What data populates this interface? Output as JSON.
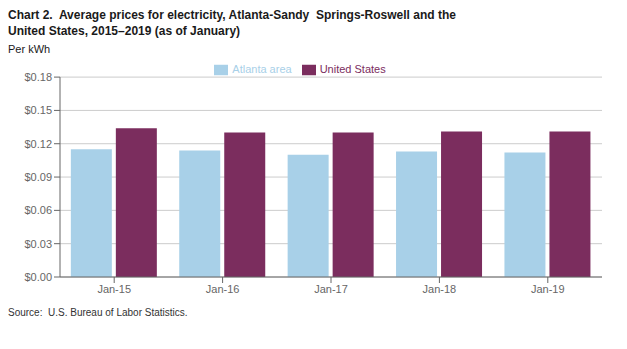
{
  "chart_data": {
    "type": "bar",
    "title": "Chart 2.  Average prices for electricity, Atlanta-Sandy  Springs-Roswell and the\nUnited States, 2015–2019 (as of January)",
    "y_label": "Per kWh",
    "source": "Source:  U.S. Bureau of Labor Statistics.",
    "categories": [
      "Jan-15",
      "Jan-16",
      "Jan-17",
      "Jan-18",
      "Jan-19"
    ],
    "series": [
      {
        "name": "Atlanta area",
        "color": "#a8d0e8",
        "values": [
          0.115,
          0.114,
          0.11,
          0.113,
          0.112
        ]
      },
      {
        "name": "United States",
        "color": "#7b2d5e",
        "values": [
          0.134,
          0.13,
          0.13,
          0.131,
          0.131
        ]
      }
    ],
    "ylim": [
      0,
      0.18
    ],
    "yticks": [
      {
        "value": 0.0,
        "label": "$0.00"
      },
      {
        "value": 0.03,
        "label": "$0.03"
      },
      {
        "value": 0.06,
        "label": "$0.06"
      },
      {
        "value": 0.09,
        "label": "$0.09"
      },
      {
        "value": 0.12,
        "label": "$0.12"
      },
      {
        "value": 0.15,
        "label": "$0.15"
      },
      {
        "value": 0.18,
        "label": "$0.18"
      }
    ],
    "grid": true,
    "legend": "top"
  }
}
